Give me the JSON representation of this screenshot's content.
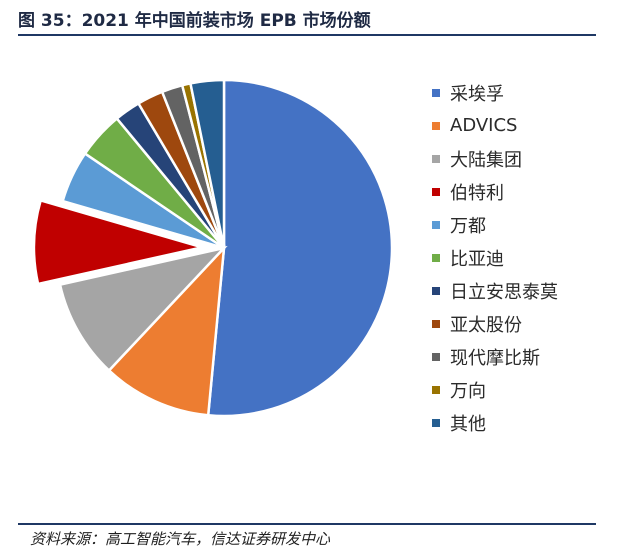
{
  "header": {
    "title": "图 35：2021 年中国前装市场 EPB 市场份额"
  },
  "footer": {
    "source": "资料来源：高工智能汽车，信达证券研发中心"
  },
  "chart_data": {
    "type": "pie",
    "title": "图 35：2021 年中国前装市场 EPB 市场份额",
    "legend_position": "right",
    "start_angle_deg": 0,
    "direction": "clockwise",
    "exploded": [
      "伯特利"
    ],
    "slices": [
      {
        "label": "采埃孚",
        "value": 51.5,
        "color": "#4472C4"
      },
      {
        "label": "ADVICS",
        "value": 10.5,
        "color": "#ED7D31"
      },
      {
        "label": "大陆集团",
        "value": 9.5,
        "color": "#A5A5A5"
      },
      {
        "label": "伯特利",
        "value": 8.0,
        "color": "#C00000"
      },
      {
        "label": "万都",
        "value": 5.0,
        "color": "#5B9BD5"
      },
      {
        "label": "比亚迪",
        "value": 4.5,
        "color": "#70AD47"
      },
      {
        "label": "日立安思泰莫",
        "value": 2.5,
        "color": "#264478"
      },
      {
        "label": "亚太股份",
        "value": 2.5,
        "color": "#9E480E"
      },
      {
        "label": "现代摩比斯",
        "value": 2.0,
        "color": "#636363"
      },
      {
        "label": "万向",
        "value": 0.8,
        "color": "#997300"
      },
      {
        "label": "其他",
        "value": 3.2,
        "color": "#255E91"
      }
    ]
  }
}
